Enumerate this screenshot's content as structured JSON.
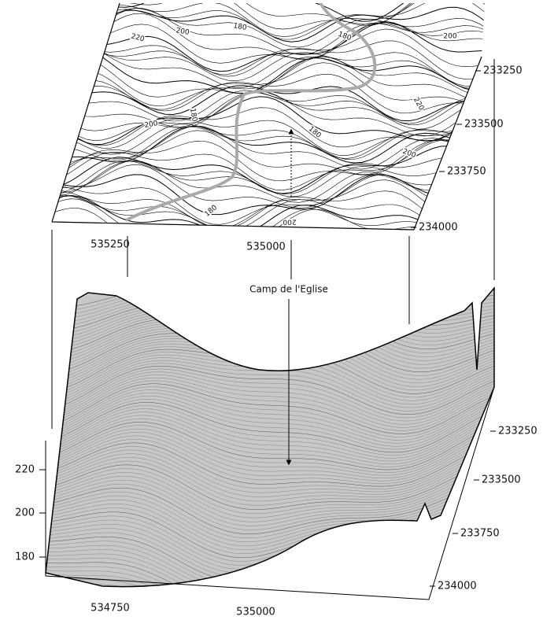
{
  "map": {
    "eastings": [
      535250,
      535000
    ],
    "northings": [
      233250,
      233500,
      233750,
      234000
    ],
    "contour_labels": [
      220,
      200,
      180,
      180,
      200,
      200,
      180,
      180,
      200,
      180,
      200,
      220
    ]
  },
  "annotation": "Camp de l'Eglise",
  "surface": {
    "elevations": [
      220,
      200,
      180
    ],
    "eastings": [
      534750,
      535000
    ],
    "northings": [
      233250,
      233500,
      233750,
      234000
    ]
  }
}
